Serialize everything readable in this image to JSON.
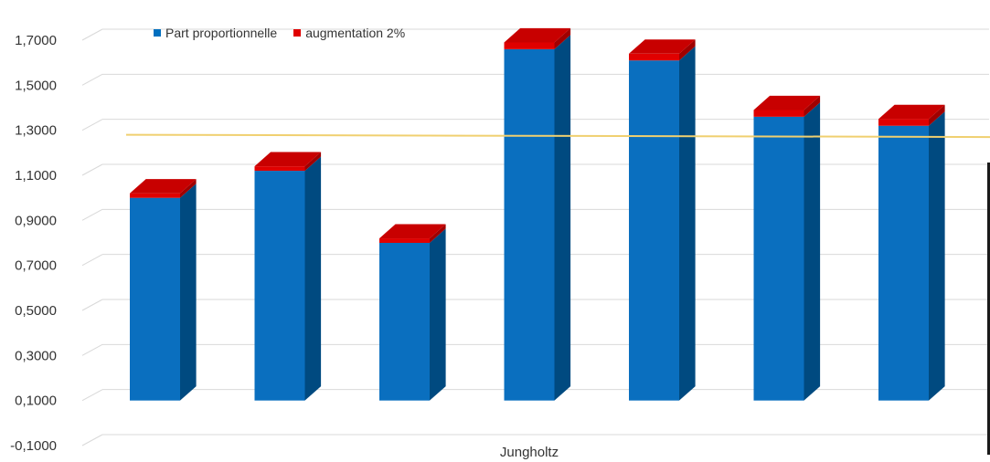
{
  "chart_data": {
    "type": "bar",
    "stacked": true,
    "three_d": true,
    "title": "",
    "xlabel": "",
    "ylabel": "",
    "ylim": [
      -0.1,
      1.8
    ],
    "y_ticks": [
      -0.1,
      0.1,
      0.3,
      0.5,
      0.7,
      0.9,
      1.1,
      1.3,
      1.5,
      1.7
    ],
    "y_tick_labels": [
      "-0,1000",
      "0,1000",
      "0,3000",
      "0,5000",
      "0,7000",
      "0,9000",
      "1,1000",
      "1,3000",
      "1,5000",
      "1,7000"
    ],
    "categories": [
      "",
      "",
      "",
      "Jungholtz",
      "",
      "",
      ""
    ],
    "series": [
      {
        "name": "Part proportionnelle",
        "color": "#0070c0",
        "values": [
          1.0,
          1.12,
          0.8,
          1.66,
          1.61,
          1.36,
          1.32
        ]
      },
      {
        "name": "augmentation 2%",
        "color": "#e00000",
        "values": [
          0.02,
          0.02,
          0.02,
          0.03,
          0.03,
          0.03,
          0.03
        ]
      }
    ],
    "reference_line": {
      "color": "#f0d070",
      "y_start": 1.28,
      "y_end": 1.27
    },
    "grid": true,
    "legend_position": "top-left"
  }
}
